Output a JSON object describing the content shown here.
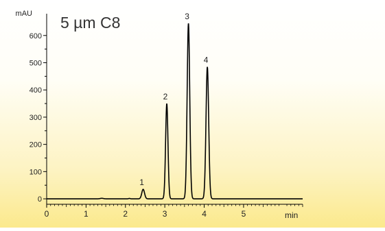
{
  "chart_data": {
    "type": "line",
    "title": "5 µm C8",
    "ylabel": "mAU",
    "xlabel": "min",
    "xlim": [
      0,
      6.5
    ],
    "ylim": [
      -20,
      680
    ],
    "x_ticks": [
      0,
      1,
      2,
      3,
      4,
      5
    ],
    "y_ticks": [
      0,
      100,
      200,
      300,
      400,
      500,
      600
    ],
    "grid": false,
    "baseline": 0,
    "peaks": [
      {
        "label": "1",
        "rt": 2.45,
        "height": 35,
        "width": 0.035
      },
      {
        "label": "2",
        "rt": 3.05,
        "height": 350,
        "width": 0.03
      },
      {
        "label": "3",
        "rt": 3.6,
        "height": 645,
        "width": 0.033
      },
      {
        "label": "4",
        "rt": 4.08,
        "height": 485,
        "width": 0.034
      }
    ],
    "minor_features": [
      {
        "rt": 1.4,
        "height": 2,
        "width": 0.04
      },
      {
        "rt": 2.1,
        "height": 1.5,
        "width": 0.02
      }
    ]
  }
}
